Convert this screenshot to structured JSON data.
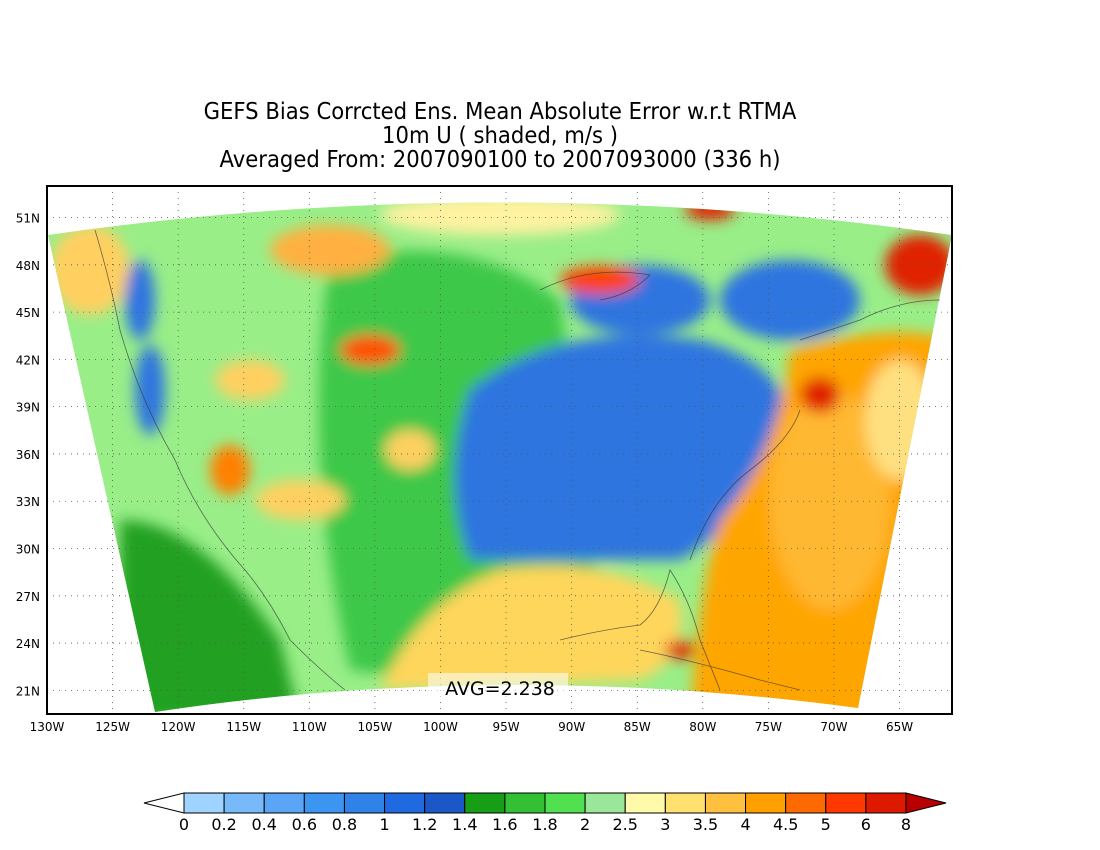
{
  "title": {
    "line1": "GEFS Bias Corrcted Ens. Mean Absolute Error w.r.t RTMA",
    "line2": "10m U ( shaded, m/s )",
    "line3": "Averaged From: 2007090100 to 2007093000 (336 h)"
  },
  "average_label": "AVG=2.238",
  "map": {
    "lon_range": [
      -130,
      -61
    ],
    "lat_range": [
      19.5,
      53
    ],
    "lat_labels": [
      "21N",
      "24N",
      "27N",
      "30N",
      "33N",
      "36N",
      "39N",
      "42N",
      "45N",
      "48N",
      "51N"
    ],
    "lon_labels": [
      "130W",
      "125W",
      "120W",
      "115W",
      "110W",
      "105W",
      "100W",
      "95W",
      "90W",
      "85W",
      "80W",
      "75W",
      "70W",
      "65W"
    ],
    "grid": "dotted",
    "regions": [
      {
        "name": "ocean-atlantic",
        "color": "#ffa500"
      },
      {
        "name": "gulf-of-mexico",
        "color": "#ffd65c"
      },
      {
        "name": "eastern-us",
        "color": "#2e74e0"
      },
      {
        "name": "plains",
        "color": "#3cc84a"
      },
      {
        "name": "west",
        "color": "#99ee88"
      },
      {
        "name": "pacific",
        "color": "#22aa22"
      }
    ]
  },
  "colorbar": {
    "labels": [
      "0",
      "0.2",
      "0.4",
      "0.6",
      "0.8",
      "1",
      "1.2",
      "1.4",
      "1.6",
      "1.8",
      "2",
      "2.5",
      "3",
      "3.5",
      "4",
      "4.5",
      "5",
      "6",
      "8"
    ],
    "colors": [
      "#9ed4ff",
      "#78b9fa",
      "#5aa5f5",
      "#3c95f0",
      "#2e82e8",
      "#1f6ae0",
      "#1c57c7",
      "#169e16",
      "#34c034",
      "#50e050",
      "#9ae79a",
      "#fff9aa",
      "#ffe170",
      "#ffc040",
      "#ff9f00",
      "#ff6a00",
      "#ff3800",
      "#dd1a00",
      "#b80000"
    ],
    "under_color": "#ffffff",
    "over_color": "#b80000"
  }
}
